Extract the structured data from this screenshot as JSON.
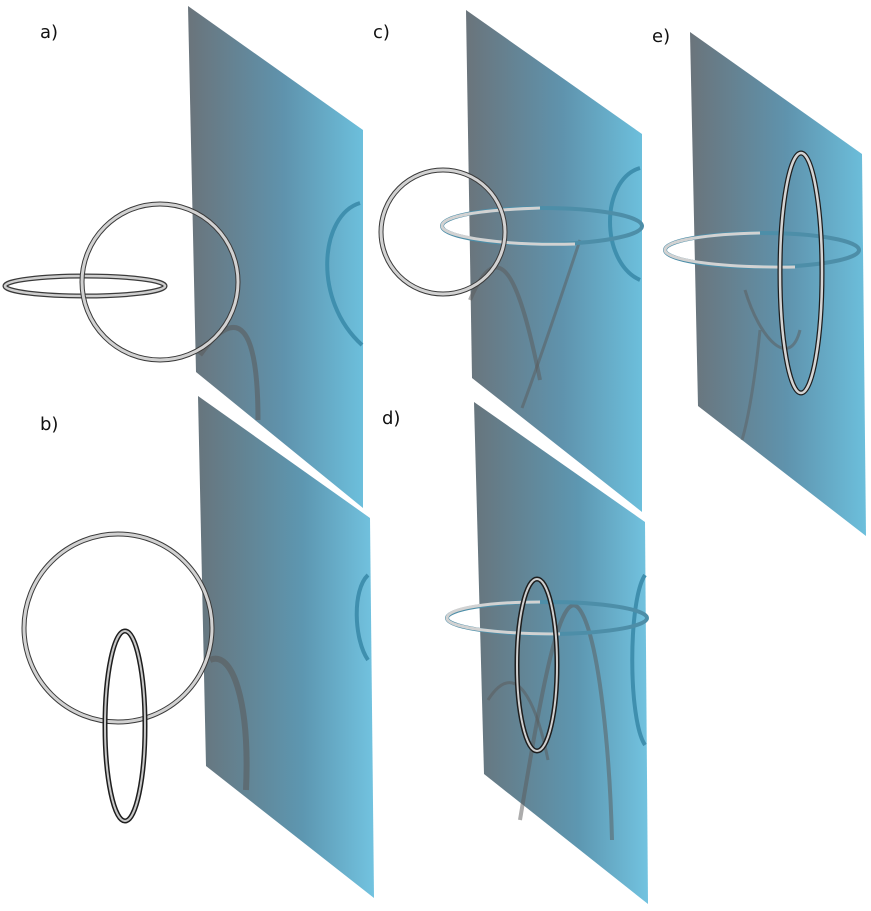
{
  "panels": [
    {
      "id": "a",
      "label": "a)"
    },
    {
      "id": "b",
      "label": "b)"
    },
    {
      "id": "c",
      "label": "c)"
    },
    {
      "id": "d",
      "label": "d)"
    },
    {
      "id": "e",
      "label": "e)"
    }
  ],
  "colors": {
    "plane_dark": "#6a7780",
    "plane_light": "#6fbcd9",
    "ring_front": "#c9c9c9",
    "ring_edge": "#3a3a3a",
    "ring_projection": "#3f8fae",
    "shadow": "#5a5a5a"
  }
}
